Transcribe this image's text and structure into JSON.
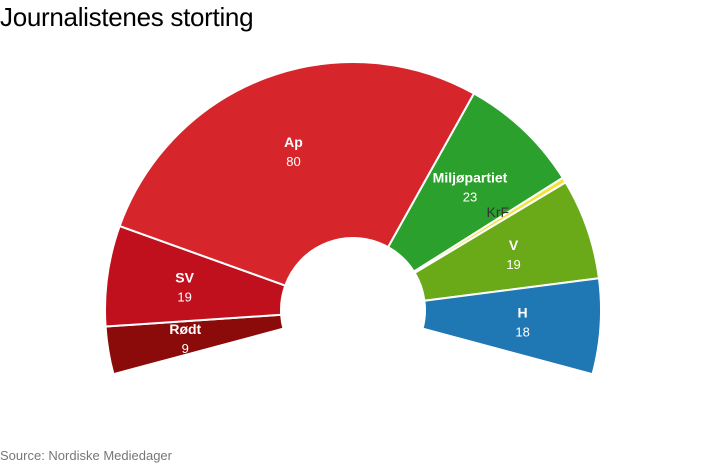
{
  "title": "Journalistenes storting",
  "source": "Source: Nordiske Mediedager",
  "chart_data": {
    "type": "pie",
    "variant": "semicircle-parliament",
    "categories": [
      "Rødt",
      "SV",
      "Ap",
      "Miljøpartiet",
      "KrF",
      "V",
      "H"
    ],
    "values": [
      9,
      19,
      80,
      23,
      1,
      19,
      18
    ],
    "colors": [
      "#8b0a0a",
      "#c0101e",
      "#d7262b",
      "#2ca02c",
      "#f2e23a",
      "#6aaa18",
      "#1f77b4"
    ],
    "label_dark": [
      false,
      false,
      false,
      false,
      true,
      false,
      false
    ]
  }
}
